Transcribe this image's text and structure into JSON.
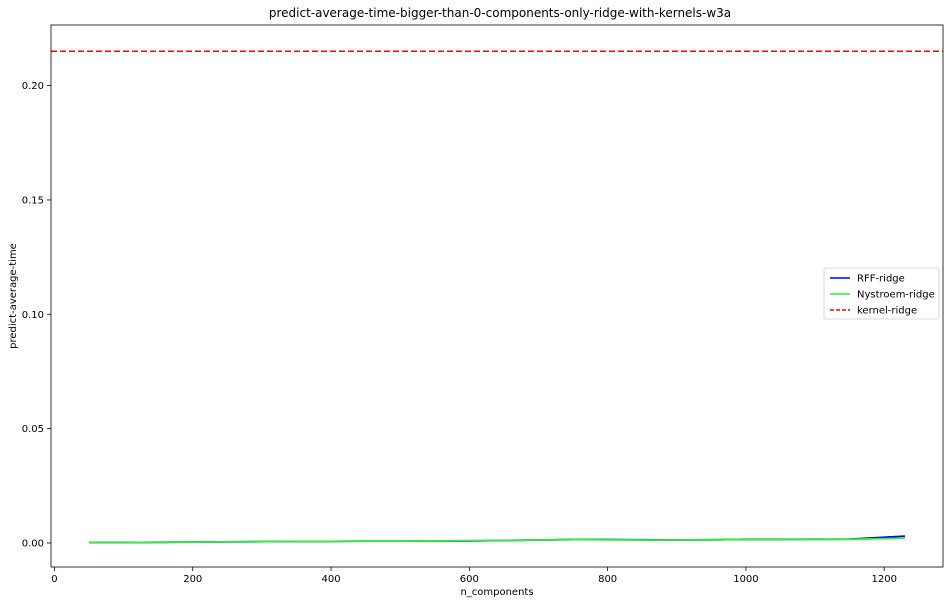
{
  "chart_data": {
    "type": "line",
    "title": "predict-average-time-bigger-than-0-components-only-ridge-with-kernels-w3a",
    "xlabel": "n_components",
    "ylabel": "predict-average-time",
    "xlim": [
      -5,
      1285
    ],
    "ylim": [
      -0.0105,
      0.2265
    ],
    "xticks": [
      0,
      200,
      400,
      600,
      800,
      1000,
      1200
    ],
    "yticks": [
      0.0,
      0.05,
      0.1,
      0.15,
      0.2
    ],
    "ytick_labels": [
      "0.00",
      "0.05",
      "0.10",
      "0.15",
      "0.20"
    ],
    "legend_position": "center-right",
    "series": [
      {
        "name": "RFF-ridge",
        "color": "#0000ff",
        "style": "solid",
        "x": [
          50,
          100,
          150,
          200,
          250,
          300,
          350,
          400,
          450,
          500,
          550,
          600,
          650,
          700,
          750,
          800,
          850,
          900,
          950,
          1000,
          1050,
          1100,
          1150,
          1200,
          1230
        ],
        "y": [
          0.0002,
          0.0002,
          0.0003,
          0.0004,
          0.0005,
          0.0006,
          0.0007,
          0.0007,
          0.0008,
          0.0008,
          0.0008,
          0.0009,
          0.0011,
          0.0013,
          0.0015,
          0.0015,
          0.0014,
          0.0013,
          0.0014,
          0.0016,
          0.0016,
          0.0016,
          0.0017,
          0.0025,
          0.003
        ]
      },
      {
        "name": "Nystroem-ridge",
        "color": "#33ee33",
        "style": "solid",
        "x": [
          50,
          100,
          150,
          200,
          250,
          300,
          350,
          400,
          450,
          500,
          550,
          600,
          650,
          700,
          750,
          800,
          850,
          900,
          950,
          1000,
          1050,
          1100,
          1150,
          1200,
          1230
        ],
        "y": [
          0.0002,
          0.0002,
          0.0003,
          0.0004,
          0.0005,
          0.0006,
          0.0007,
          0.0007,
          0.0008,
          0.0008,
          0.0009,
          0.001,
          0.0011,
          0.0013,
          0.0015,
          0.0014,
          0.0013,
          0.0013,
          0.0014,
          0.0016,
          0.0016,
          0.0015,
          0.0016,
          0.0019,
          0.0021
        ]
      },
      {
        "name": "kernel-ridge",
        "color": "#ff0000",
        "style": "dashed",
        "constant": 0.215
      }
    ]
  }
}
